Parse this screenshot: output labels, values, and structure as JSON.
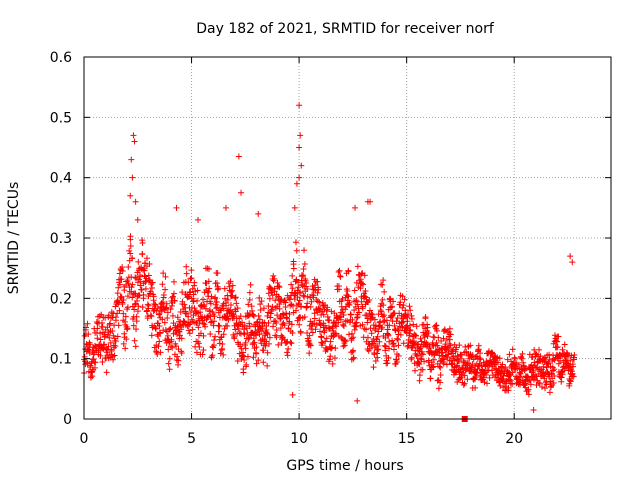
{
  "chart_data": {
    "type": "scatter",
    "title": "Day 182 of 2021, SRMTID for receiver norf",
    "xlabel": "GPS time / hours",
    "ylabel": "SRMTID / TECUs",
    "xlim": [
      0,
      24.5
    ],
    "ylim": [
      0,
      0.6
    ],
    "xticks": [
      0,
      5,
      10,
      15,
      20
    ],
    "yticks": [
      0,
      0.1,
      0.2,
      0.3,
      0.4,
      0.5,
      0.6
    ],
    "xtick_labels": [
      "0",
      "5",
      "10",
      "15",
      "20"
    ],
    "ytick_labels": [
      "0",
      "0.1",
      "0.2",
      "0.3",
      "0.4",
      "0.5",
      "0.6"
    ],
    "grid": true,
    "marker": "+",
    "color": "#ff0000",
    "series": [
      {
        "name": "SRMTID",
        "profile": [
          {
            "t": 0.0,
            "lo": 0.05,
            "hi": 0.16
          },
          {
            "t": 1.0,
            "lo": 0.06,
            "hi": 0.18
          },
          {
            "t": 1.7,
            "lo": 0.12,
            "hi": 0.26
          },
          {
            "t": 2.3,
            "lo": 0.12,
            "hi": 0.31
          },
          {
            "t": 3.0,
            "lo": 0.12,
            "hi": 0.28
          },
          {
            "t": 4.0,
            "lo": 0.07,
            "hi": 0.22
          },
          {
            "t": 5.2,
            "lo": 0.1,
            "hi": 0.27
          },
          {
            "t": 6.5,
            "lo": 0.1,
            "hi": 0.24
          },
          {
            "t": 8.0,
            "lo": 0.07,
            "hi": 0.21
          },
          {
            "t": 9.3,
            "lo": 0.1,
            "hi": 0.26
          },
          {
            "t": 10.0,
            "lo": 0.12,
            "hi": 0.3
          },
          {
            "t": 11.0,
            "lo": 0.08,
            "hi": 0.21
          },
          {
            "t": 12.5,
            "lo": 0.08,
            "hi": 0.27
          },
          {
            "t": 13.5,
            "lo": 0.09,
            "hi": 0.24
          },
          {
            "t": 15.0,
            "lo": 0.08,
            "hi": 0.2
          },
          {
            "t": 16.5,
            "lo": 0.06,
            "hi": 0.16
          },
          {
            "t": 18.0,
            "lo": 0.06,
            "hi": 0.12
          },
          {
            "t": 19.5,
            "lo": 0.05,
            "hi": 0.11
          },
          {
            "t": 21.0,
            "lo": 0.04,
            "hi": 0.11
          },
          {
            "t": 22.0,
            "lo": 0.06,
            "hi": 0.14
          },
          {
            "t": 22.8,
            "lo": 0.06,
            "hi": 0.12
          }
        ],
        "n_points": 2000,
        "t_start": 0.0,
        "t_end": 22.8,
        "seed": 182,
        "peaks": [
          {
            "x": 2.2,
            "y": 0.43
          },
          {
            "x": 2.3,
            "y": 0.47
          },
          {
            "x": 2.35,
            "y": 0.46
          },
          {
            "x": 2.25,
            "y": 0.4
          },
          {
            "x": 2.15,
            "y": 0.37
          },
          {
            "x": 2.4,
            "y": 0.36
          },
          {
            "x": 2.5,
            "y": 0.33
          },
          {
            "x": 4.3,
            "y": 0.35
          },
          {
            "x": 5.3,
            "y": 0.33
          },
          {
            "x": 7.2,
            "y": 0.435
          },
          {
            "x": 7.3,
            "y": 0.375
          },
          {
            "x": 6.6,
            "y": 0.35
          },
          {
            "x": 8.1,
            "y": 0.34
          },
          {
            "x": 9.9,
            "y": 0.39
          },
          {
            "x": 10.0,
            "y": 0.4
          },
          {
            "x": 10.1,
            "y": 0.42
          },
          {
            "x": 10.0,
            "y": 0.45
          },
          {
            "x": 10.05,
            "y": 0.47
          },
          {
            "x": 10.0,
            "y": 0.52
          },
          {
            "x": 9.8,
            "y": 0.35
          },
          {
            "x": 12.6,
            "y": 0.35
          },
          {
            "x": 13.2,
            "y": 0.36
          },
          {
            "x": 13.3,
            "y": 0.36
          },
          {
            "x": 22.6,
            "y": 0.27
          },
          {
            "x": 22.7,
            "y": 0.26
          },
          {
            "x": 9.7,
            "y": 0.04
          },
          {
            "x": 12.7,
            "y": 0.03
          },
          {
            "x": 20.9,
            "y": 0.015
          }
        ],
        "special_marker": {
          "x": 17.7,
          "y": 0.0
        }
      }
    ]
  }
}
